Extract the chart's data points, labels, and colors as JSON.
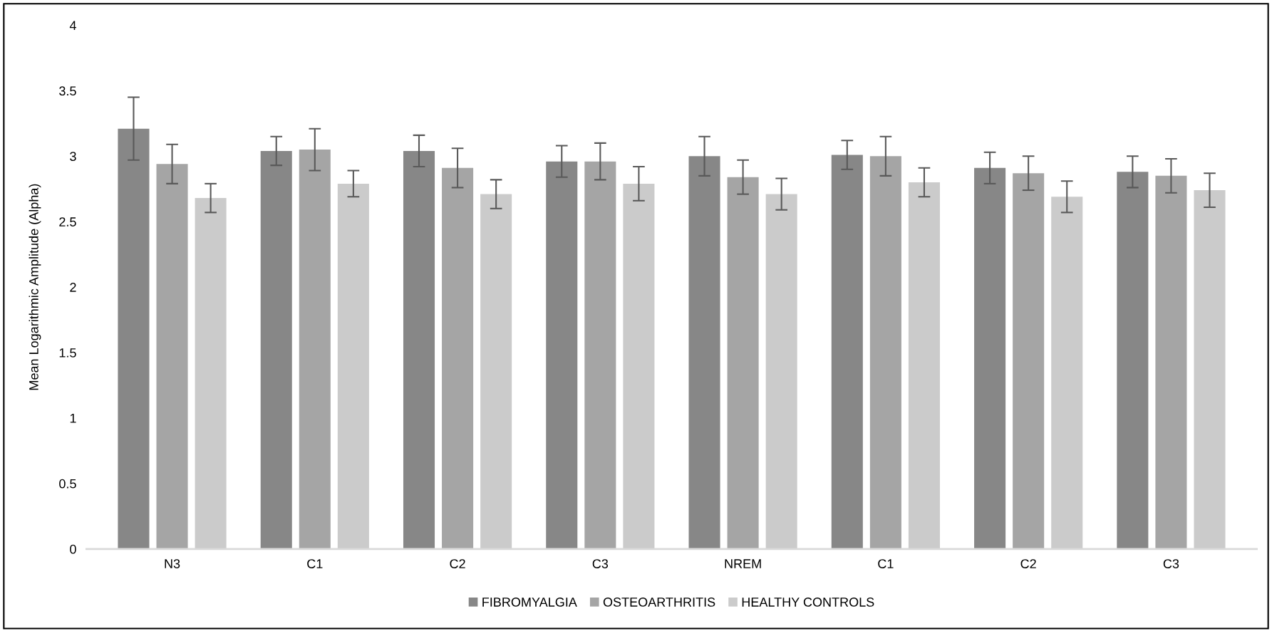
{
  "chart_data": {
    "type": "bar",
    "ylabel": "Mean Logarithmic Amplitude (Alpha)",
    "categories": [
      "N3",
      "C1",
      "C2",
      "C3",
      "NREM",
      "C1",
      "C2",
      "C3"
    ],
    "series": [
      {
        "name": "FIBROMYALGIA",
        "color": "#878787",
        "values": [
          3.21,
          3.04,
          3.04,
          2.96,
          3.0,
          3.01,
          2.91,
          2.88
        ],
        "errors": [
          0.24,
          0.11,
          0.12,
          0.12,
          0.15,
          0.11,
          0.12,
          0.12
        ]
      },
      {
        "name": "OSTEOARTHRITIS",
        "color": "#a5a5a5",
        "values": [
          2.94,
          3.05,
          2.91,
          2.96,
          2.84,
          3.0,
          2.87,
          2.85
        ],
        "errors": [
          0.15,
          0.16,
          0.15,
          0.14,
          0.13,
          0.15,
          0.13,
          0.13
        ]
      },
      {
        "name": "HEALTHY CONTROLS",
        "color": "#cbcbcb",
        "values": [
          2.68,
          2.79,
          2.71,
          2.79,
          2.71,
          2.8,
          2.69,
          2.74
        ],
        "errors": [
          0.11,
          0.1,
          0.11,
          0.13,
          0.12,
          0.11,
          0.12,
          0.13
        ]
      }
    ],
    "ylim": [
      0,
      4
    ],
    "yticks": [
      0,
      0.5,
      1,
      1.5,
      2,
      2.5,
      3,
      3.5,
      4
    ],
    "legend": "bottom",
    "grid": false
  }
}
